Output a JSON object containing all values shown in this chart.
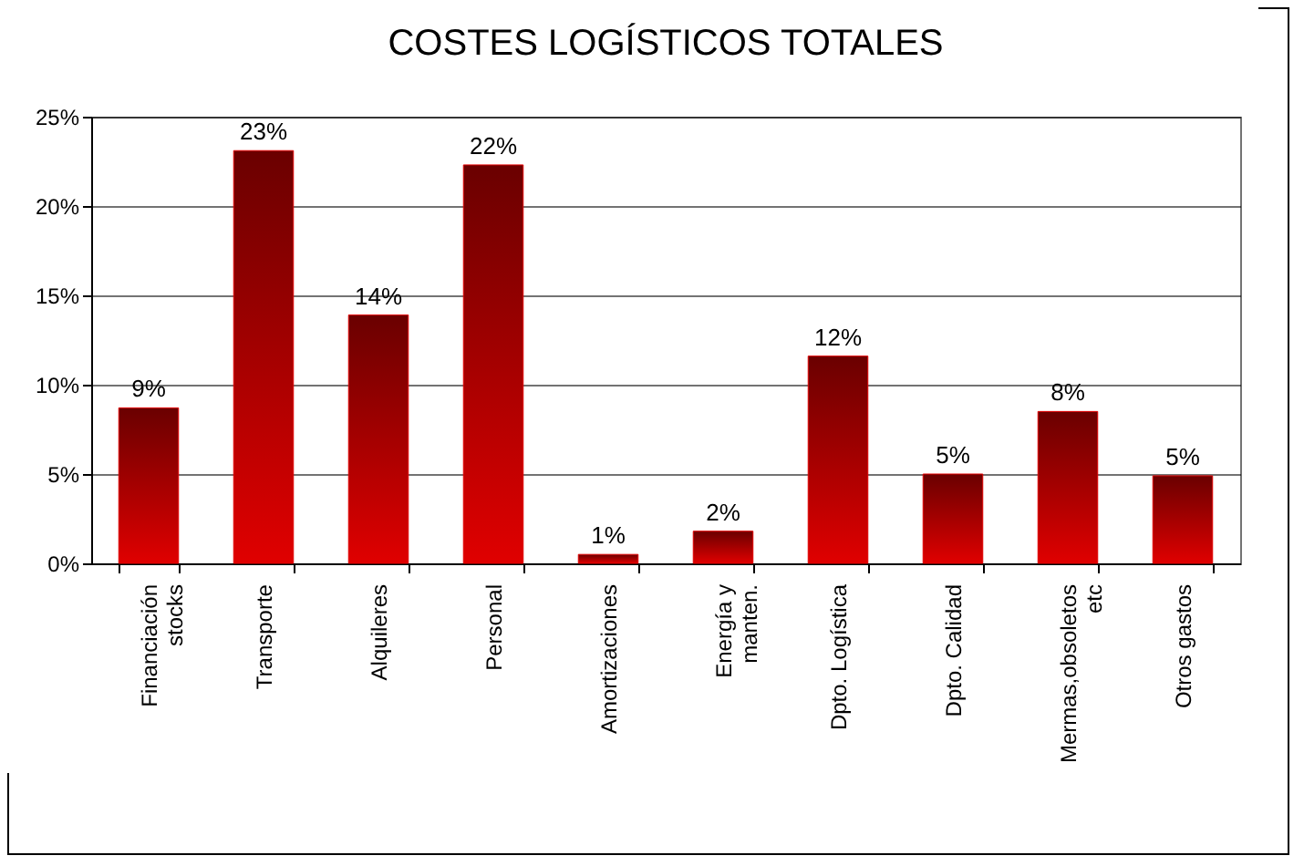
{
  "chart_data": {
    "type": "bar",
    "title": "COSTES LOGÍSTICOS TOTALES",
    "categories": [
      "Financiación stocks",
      "Transporte",
      "Alquileres",
      "Personal",
      "Amortizaciones",
      "Energía y manten.",
      "Dpto. Logística",
      "Dpto. Calidad",
      "Mermas,obsoletos etc",
      "Otros gastos"
    ],
    "values": [
      8.7,
      23.1,
      13.9,
      22.3,
      0.5,
      1.8,
      11.6,
      5.0,
      8.5,
      4.9
    ],
    "value_labels": [
      "9%",
      "23%",
      "14%",
      "22%",
      "1%",
      "2%",
      "12%",
      "5%",
      "8%",
      "5%"
    ],
    "color": "#e00000",
    "ylim": [
      0,
      25
    ],
    "yticks": [
      {
        "value": 0,
        "label": "0%"
      },
      {
        "value": 5,
        "label": "5%"
      },
      {
        "value": 10,
        "label": "10%"
      },
      {
        "value": 15,
        "label": "15%"
      },
      {
        "value": 20,
        "label": "20%"
      },
      {
        "value": 25,
        "label": "25%"
      }
    ],
    "grid": "y"
  }
}
